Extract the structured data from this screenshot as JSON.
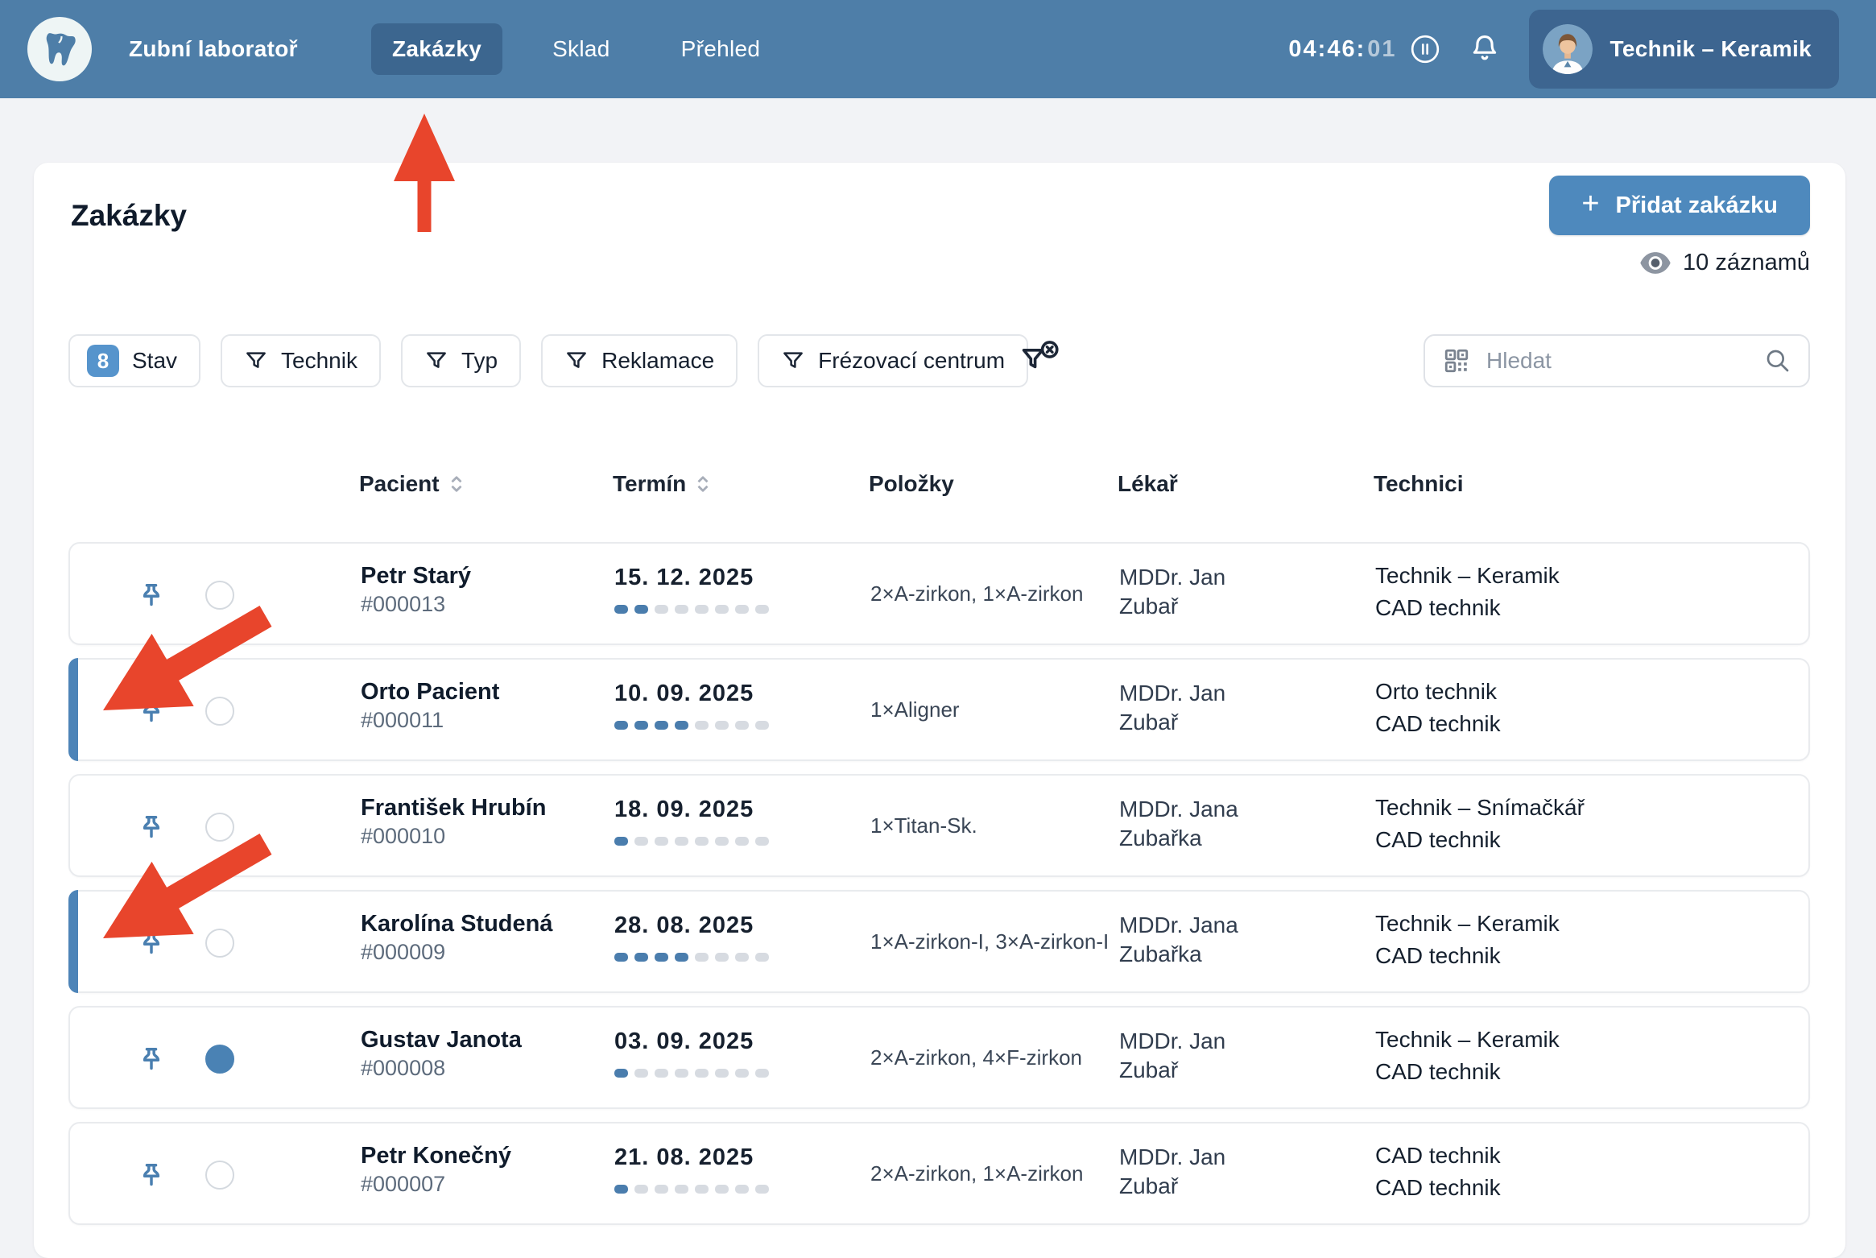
{
  "topbar": {
    "app_name": "Zubní laboratoř",
    "tabs": [
      {
        "label": "Zakázky",
        "active": true
      },
      {
        "label": "Sklad",
        "active": false
      },
      {
        "label": "Přehled",
        "active": false
      }
    ],
    "timer": {
      "hours_minutes": "04:46:",
      "seconds": "01"
    },
    "user_name": "Technik – Keramik"
  },
  "header": {
    "title": "Zakázky",
    "add_button_label": "Přidat zakázku",
    "records_count": "10 záznamů"
  },
  "filters": {
    "buttons": [
      {
        "label": "Stav",
        "badge": "8"
      },
      {
        "label": "Technik"
      },
      {
        "label": "Typ"
      },
      {
        "label": "Reklamace"
      },
      {
        "label": "Frézovací centrum"
      }
    ],
    "search_placeholder": "Hledat"
  },
  "table": {
    "columns": [
      "Pacient",
      "Termín",
      "Položky",
      "Lékař",
      "Technici"
    ],
    "rows": [
      {
        "patient": "Petr Starý",
        "order_no": "#000013",
        "date": "15. 12. 2025",
        "progress_done": 2,
        "progress_total": 8,
        "items": "2×A-zirkon, 1×A-zirkon",
        "doctor": [
          "MDDr. Jan",
          "Zubař"
        ],
        "technicians": [
          "Technik – Keramik",
          "CAD technik"
        ],
        "highlighted": false,
        "selected": false
      },
      {
        "patient": "Orto Pacient",
        "order_no": "#000011",
        "date": "10. 09. 2025",
        "progress_done": 4,
        "progress_total": 8,
        "items": "1×Aligner",
        "doctor": [
          "MDDr. Jan",
          "Zubař"
        ],
        "technicians": [
          "Orto technik",
          "CAD technik"
        ],
        "highlighted": true,
        "selected": false
      },
      {
        "patient": "František Hrubín",
        "order_no": "#000010",
        "date": "18. 09. 2025",
        "progress_done": 1,
        "progress_total": 8,
        "items": "1×Titan-Sk.",
        "doctor": [
          "MDDr. Jana",
          "Zubařka"
        ],
        "technicians": [
          "Technik – Snímačkář",
          "CAD technik"
        ],
        "highlighted": false,
        "selected": false
      },
      {
        "patient": "Karolína Studená",
        "order_no": "#000009",
        "date": "28. 08. 2025",
        "progress_done": 4,
        "progress_total": 8,
        "items": "1×A-zirkon-I, 3×A-zirkon-I",
        "doctor": [
          "MDDr. Jana",
          "Zubařka"
        ],
        "technicians": [
          "Technik – Keramik",
          "CAD technik"
        ],
        "highlighted": true,
        "selected": false
      },
      {
        "patient": "Gustav Janota",
        "order_no": "#000008",
        "date": "03. 09. 2025",
        "progress_done": 1,
        "progress_total": 8,
        "items": "2×A-zirkon, 4×F-zirkon",
        "doctor": [
          "MDDr. Jan",
          "Zubař"
        ],
        "technicians": [
          "Technik – Keramik",
          "CAD technik"
        ],
        "highlighted": false,
        "selected": true
      },
      {
        "patient": "Petr Konečný",
        "order_no": "#000007",
        "date": "21. 08. 2025",
        "progress_done": 1,
        "progress_total": 8,
        "items": "2×A-zirkon, 1×A-zirkon",
        "doctor": [
          "MDDr. Jan",
          "Zubař"
        ],
        "technicians": [
          "CAD technik",
          "CAD technik"
        ],
        "highlighted": false,
        "selected": false
      }
    ]
  },
  "colors": {
    "topbar": "#4e7ea8",
    "accent_blue": "#4e89bd",
    "progress_fill": "#4a7dad",
    "annotation_red": "#e8452c"
  }
}
